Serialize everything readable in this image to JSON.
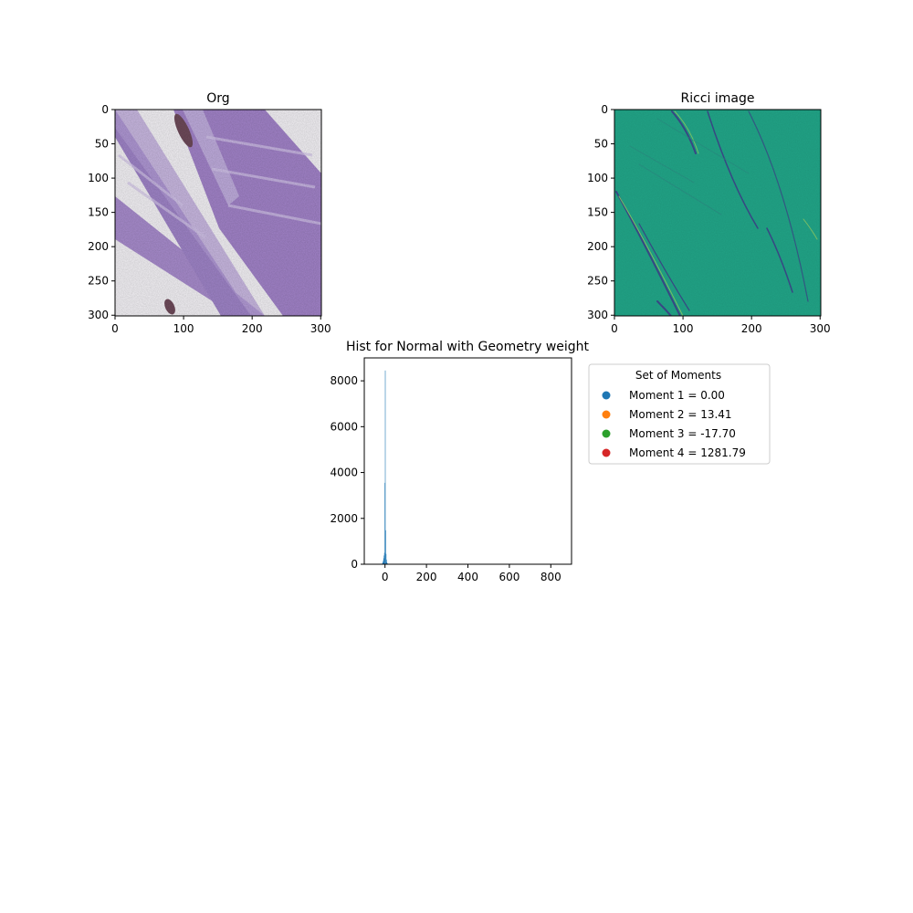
{
  "chart_data": [
    {
      "type": "image",
      "title": "Org",
      "x_ticks": [
        0,
        100,
        200,
        300
      ],
      "y_ticks": [
        0,
        50,
        100,
        150,
        200,
        250,
        300
      ],
      "xlim": [
        0,
        301
      ],
      "ylim": [
        301,
        0
      ],
      "image_extent": 301,
      "colors": {
        "background": "#f4f2f6",
        "stain": "#9d82c6",
        "stain_light": "#c2b0dd",
        "nucleus": "#6e4a5a"
      }
    },
    {
      "type": "image",
      "title": "Ricci image",
      "x_ticks": [
        0,
        100,
        200,
        300
      ],
      "y_ticks": [
        0,
        50,
        100,
        150,
        200,
        250,
        300
      ],
      "xlim": [
        0,
        301
      ],
      "ylim": [
        301,
        0
      ],
      "image_extent": 301,
      "colors": {
        "background": "#21a386",
        "edge_dark": "#3b4a8a",
        "edge_light": "#7fc76a"
      }
    },
    {
      "type": "bar",
      "title": "Hist for Normal with Geometry weight",
      "x_ticks": [
        0,
        200,
        400,
        600,
        800
      ],
      "y_ticks": [
        0,
        2000,
        4000,
        6000,
        8000
      ],
      "xlim": [
        -100,
        900
      ],
      "ylim": [
        0,
        9000
      ],
      "bar_color": "#1f77b4",
      "bins": [
        {
          "x": -16,
          "w": 2,
          "v": 30
        },
        {
          "x": -12,
          "w": 2,
          "v": 80
        },
        {
          "x": -10,
          "w": 2,
          "v": 150
        },
        {
          "x": -8,
          "w": 2,
          "v": 260
        },
        {
          "x": -6,
          "w": 2,
          "v": 380
        },
        {
          "x": -4,
          "w": 2,
          "v": 500
        },
        {
          "x": -2,
          "w": 2,
          "v": 3550
        },
        {
          "x": 0,
          "w": 2,
          "v": 8450
        },
        {
          "x": 2,
          "w": 2,
          "v": 1480
        },
        {
          "x": 4,
          "w": 2,
          "v": 450
        },
        {
          "x": 6,
          "w": 2,
          "v": 200
        },
        {
          "x": 8,
          "w": 2,
          "v": 90
        },
        {
          "x": 10,
          "w": 2,
          "v": 40
        },
        {
          "x": 14,
          "w": 2,
          "v": 15
        }
      ],
      "legend": {
        "title": "Set of Moments",
        "placement": "right of plot",
        "entries": [
          {
            "label": "Moment 1 = 0.00",
            "color": "#1f77b4"
          },
          {
            "label": "Moment 2 = 13.41",
            "color": "#ff7f0e"
          },
          {
            "label": "Moment 3 = -17.70",
            "color": "#2ca02c"
          },
          {
            "label": "Moment 4 = 1281.79",
            "color": "#d62728"
          }
        ]
      }
    }
  ]
}
